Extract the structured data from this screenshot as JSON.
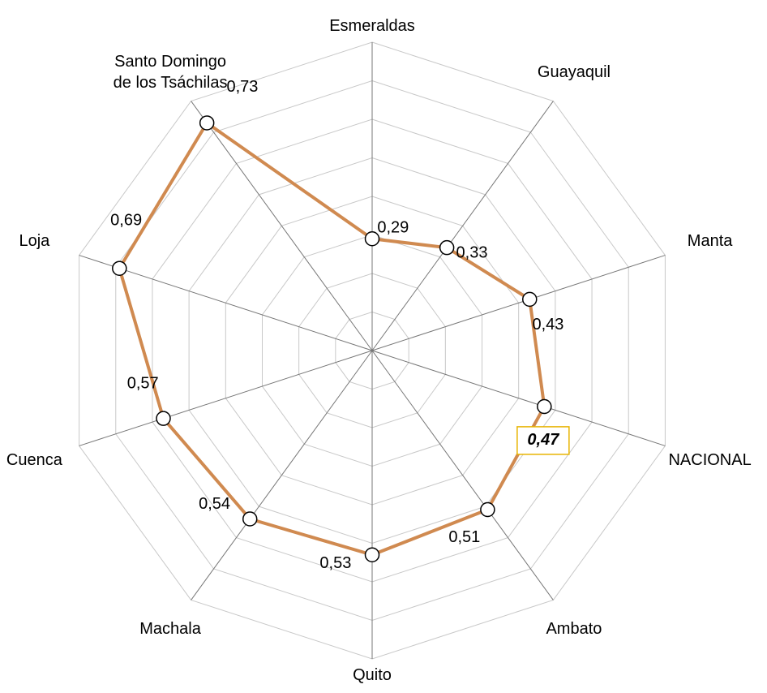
{
  "chart_data": {
    "type": "radar",
    "categories": [
      "Esmeraldas",
      "Guayaquil",
      "Manta",
      "NACIONAL",
      "Ambato",
      "Quito",
      "Machala",
      "Cuenca",
      "Loja",
      "Santo Domingo\nde los Tsáchilas"
    ],
    "values": [
      0.29,
      0.33,
      0.43,
      0.47,
      0.51,
      0.53,
      0.54,
      0.57,
      0.69,
      0.73
    ],
    "value_labels": [
      "0,29",
      "0,33",
      "0,43",
      "0,47",
      "0,51",
      "0,53",
      "0,54",
      "0,57",
      "0,69",
      "0,73"
    ],
    "color": "#d08a50",
    "ylim": [
      0,
      0.8
    ],
    "yticks": [
      0.1,
      0.2,
      0.3,
      0.4,
      0.5,
      0.6,
      0.7,
      0.8
    ],
    "grid": true,
    "highlighted": "NACIONAL"
  }
}
